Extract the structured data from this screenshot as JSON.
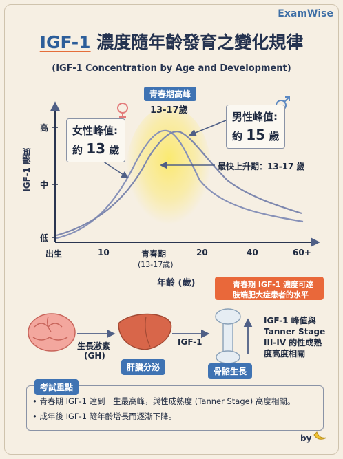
{
  "brand": "ExamWise",
  "title": {
    "en": "IGF-1",
    "zh": "濃度隨年齡發育之變化規律"
  },
  "subtitle": "(IGF-1 Concentration by Age and Development)",
  "chart_data": {
    "type": "line",
    "ylabel": "IGF-1 濃度",
    "xlabel": "年齡 (歲)",
    "y_ticks": [
      "高",
      "中",
      "低"
    ],
    "x_ticks": [
      "出生",
      "10",
      "青春期",
      "20",
      "40",
      "60+"
    ],
    "x_tick_sub": "(13-17歲)",
    "series": [
      {
        "name": "女性",
        "peak_age": 13
      },
      {
        "name": "男性",
        "peak_age": 15
      }
    ]
  },
  "annotations": {
    "puberty_tag": "青春期高峰",
    "puberty_range": "13-17歲",
    "female_label": "女性峰值:",
    "female_prefix": "約",
    "female_value": "13",
    "female_unit": "歲",
    "male_label": "男性峰值:",
    "male_prefix": "約",
    "male_value": "15",
    "male_unit": "歲",
    "fastest_rise": "最快上升期：13-17 歲"
  },
  "warning": {
    "line1": "青春期 IGF-1 濃度可達",
    "line2": "肢端肥大症患者的水平"
  },
  "pathway": {
    "gh_label_1": "生長激素",
    "gh_label_2": "(GH)",
    "liver_label": "肝臟分泌",
    "igf_label": "IGF-1",
    "bone_label": "骨骼生長",
    "side_note": [
      "IGF-1 峰值與",
      "Tanner Stage",
      "III-IV 的性成熟",
      "度高度相關"
    ]
  },
  "key_points": {
    "title": "考試重點",
    "items": [
      "• 青春期 IGF-1 達到一生最高峰，與性成熟度 (Tanner Stage) 高度相關。",
      "• 成年後 IGF-1 隨年齡增長而逐漸下降。"
    ]
  },
  "footer": "by",
  "colors": {
    "accent": "#e9683a",
    "blue": "#3f73b3",
    "curve": "#8791b8"
  }
}
